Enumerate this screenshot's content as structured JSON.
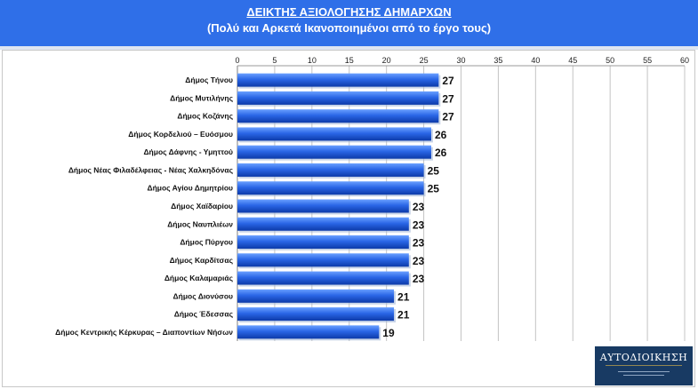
{
  "header": {
    "title": "ΔΕΙΚΤΗΣ ΑΞΙΟΛΟΓΗΣΗΣ ΔΗΜΑΡΧΩΝ",
    "subtitle": "(Πολύ και Αρκετά Ικανοποιημένοι από το έργο τους)"
  },
  "logo": {
    "text": "ΑΥΤΟΔΙΟΙΚΗΣΗ"
  },
  "colors": {
    "header_bg": "#2f6fe8",
    "bar": "#1f5fe0",
    "bar_light": "#5a95ff",
    "bar_dark": "#0d3fb0"
  },
  "chart_data": {
    "type": "bar",
    "orientation": "horizontal",
    "title": "ΔΕΙΚΤΗΣ ΑΞΙΟΛΟΓΗΣΗΣ ΔΗΜΑΡΧΩΝ",
    "subtitle": "(Πολύ και Αρκετά Ικανοποιημένοι από το έργο τους)",
    "xlim": [
      0,
      60
    ],
    "ticks": [
      0,
      5,
      10,
      15,
      20,
      25,
      30,
      35,
      40,
      45,
      50,
      55,
      60
    ],
    "axis_position": "top",
    "grid": true,
    "categories": [
      "Δήμος Τήνου",
      "Δήμος Μυτιλήνης",
      "Δήμος Κοζάνης",
      "Δήμος Κορδελιού – Ευόσμου",
      "Δήμος Δάφνης - Υμηττού",
      "Δήμος Νέας Φιλαδέλφειας - Νέας Χαλκηδόνας",
      "Δήμος Αγίου Δημητρίου",
      "Δήμος Χαϊδαρίου",
      "Δήμος Ναυπλιέων",
      "Δήμος Πύργου",
      "Δήμος Καρδίτσας",
      "Δήμος Καλαμαριάς",
      "Δήμος Διονύσου",
      "Δήμος Έδεσσας",
      "Δήμος Κεντρικής Κέρκυρας – Διαποντίων Νήσων"
    ],
    "values": [
      27,
      27,
      27,
      26,
      26,
      25,
      25,
      23,
      23,
      23,
      23,
      23,
      21,
      21,
      19
    ]
  }
}
